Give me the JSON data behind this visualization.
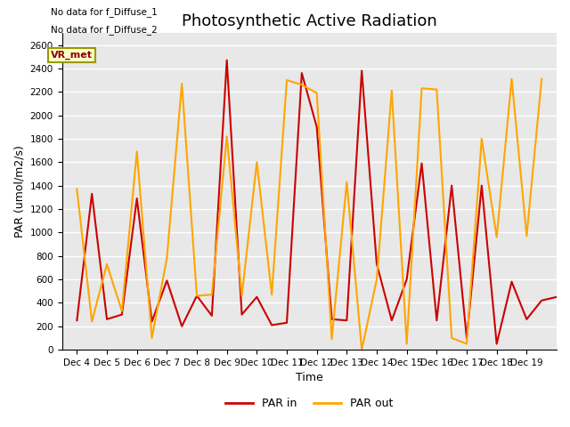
{
  "title": "Photosynthetic Active Radiation",
  "ylabel": "PAR (umol/m2/s)",
  "xlabel": "Time",
  "note_line1": "No data for f_Diffuse_1",
  "note_line2": "No data for f_Diffuse_2",
  "legend_label": "VR_met",
  "ylim": [
    0,
    2700
  ],
  "yticks": [
    0,
    200,
    400,
    600,
    800,
    1000,
    1200,
    1400,
    1600,
    1800,
    2000,
    2200,
    2400,
    2600
  ],
  "x_labels": [
    "Dec 4",
    "Dec 5",
    "Dec 6",
    "Dec 7",
    "Dec 8",
    "Dec 9",
    "Dec 10",
    "Dec 11",
    "Dec 12",
    "Dec 13",
    "Dec 14",
    "Dec 15",
    "Dec 16",
    "Dec 17",
    "Dec 18",
    "Dec 19"
  ],
  "par_in_x": [
    0,
    0.5,
    1,
    1.5,
    2,
    2.5,
    3,
    3.5,
    4,
    4.5,
    5,
    5.5,
    6,
    6.5,
    7,
    7.5,
    8,
    8.5,
    9,
    9.5,
    10,
    10.5,
    11,
    11.5,
    12,
    12.5,
    13,
    13.5,
    14,
    14.5,
    15,
    15.5,
    16
  ],
  "par_in_y": [
    250,
    1330,
    260,
    300,
    1290,
    240,
    590,
    200,
    460,
    290,
    2470,
    300,
    450,
    210,
    230,
    2360,
    1900,
    260,
    250,
    2380,
    730,
    250,
    600,
    1590,
    250,
    1400,
    100,
    1400,
    50,
    580,
    260,
    420,
    450
  ],
  "par_out_x": [
    0,
    0.5,
    1,
    1.5,
    2,
    2.5,
    3,
    3.5,
    4,
    4.5,
    5,
    5.5,
    6,
    6.5,
    7,
    7.5,
    8,
    8.5,
    9,
    9.5,
    10,
    10.5,
    11,
    11.5,
    12,
    12.5,
    13,
    13.5,
    14,
    14.5,
    15,
    15.5
  ],
  "par_out_y": [
    1370,
    240,
    730,
    330,
    1690,
    100,
    780,
    2270,
    460,
    470,
    1820,
    460,
    1600,
    470,
    2300,
    2260,
    2190,
    90,
    1430,
    0,
    600,
    2210,
    50,
    2230,
    2220,
    100,
    50,
    1800,
    960,
    2310,
    970,
    2310
  ],
  "color_par_in": "#cc0000",
  "color_par_out": "#ffa500",
  "background_color": "#e8e8e8",
  "grid_color": "#ffffff",
  "title_fontsize": 13,
  "axis_label_fontsize": 9,
  "tick_fontsize": 7.5
}
